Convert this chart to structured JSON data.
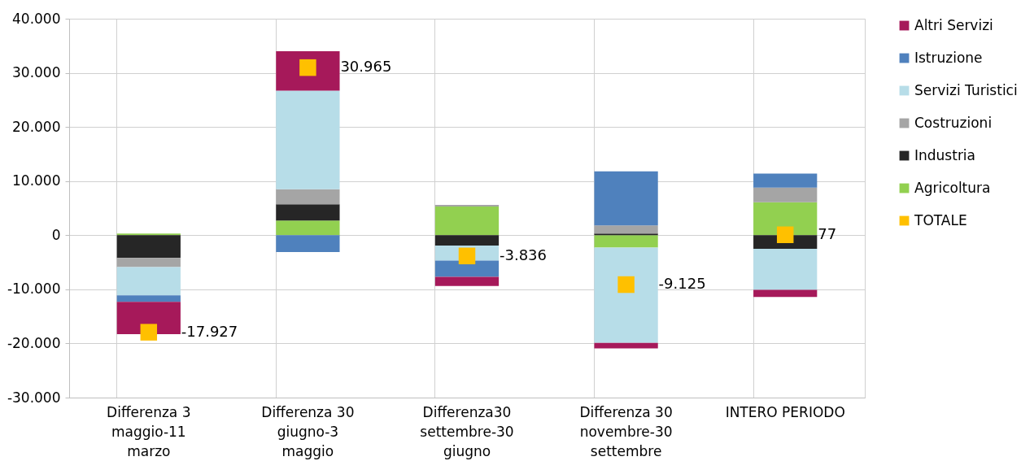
{
  "chart_data": {
    "type": "bar",
    "stacked": true,
    "categories": [
      "Differenza 3 maggio-11 marzo",
      "Differenza 30 giugno-3 maggio",
      "Differenza30 settembre-30 giugno",
      "Differenza 30 novembre-30 settembre",
      "INTERO PERIODO"
    ],
    "series": [
      {
        "name": "Agricoltura",
        "color": "#92d050",
        "values": [
          300,
          2700,
          5300,
          -2300,
          6100
        ]
      },
      {
        "name": "Industria",
        "color": "#262626",
        "values": [
          -4200,
          3000,
          -1900,
          300,
          -2500
        ]
      },
      {
        "name": "Costruzioni",
        "color": "#a5a5a5",
        "values": [
          -1700,
          2800,
          300,
          1500,
          2700
        ]
      },
      {
        "name": "Servizi Turistici",
        "color": "#b7dde8",
        "values": [
          -5200,
          18200,
          -2800,
          -17600,
          -7600
        ]
      },
      {
        "name": "Istruzione",
        "color": "#4f81bd",
        "values": [
          -1200,
          -3100,
          -3000,
          10000,
          2600
        ]
      },
      {
        "name": "Altri Servizi",
        "color": "#a6195a",
        "values": [
          -6000,
          7300,
          -1700,
          -1000,
          -1300
        ]
      },
      {
        "name": "TOTALE",
        "type": "scatter",
        "color": "#ffc000",
        "values": [
          -17927,
          30965,
          -3836,
          -9125,
          77
        ],
        "value_labels": [
          "-17.927",
          "30.965",
          "-3.836",
          "-9.125",
          "77"
        ]
      }
    ],
    "ylim": [
      -30000,
      40000
    ],
    "yticks": [
      {
        "value": -30000,
        "label": "-30.000"
      },
      {
        "value": -20000,
        "label": "-20.000"
      },
      {
        "value": -10000,
        "label": "-10.000"
      },
      0,
      {
        "value": 10000,
        "label": "10.000"
      },
      {
        "value": 20000,
        "label": "20.000"
      },
      {
        "value": 30000,
        "label": "30.000"
      },
      {
        "value": 40000,
        "label": "40.000"
      }
    ],
    "grid": true,
    "legend": "right",
    "marker": "square"
  }
}
